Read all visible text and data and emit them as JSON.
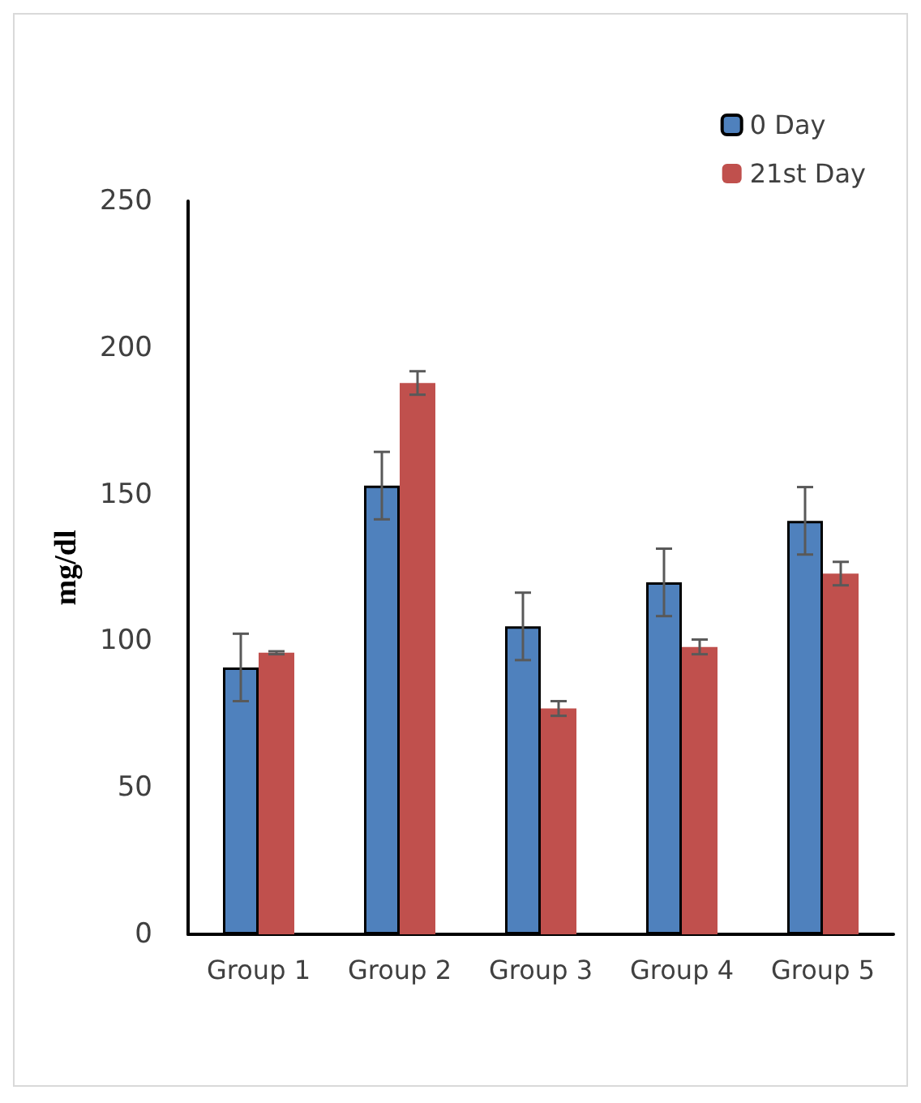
{
  "chart_data": {
    "type": "bar",
    "ylabel": "mg/dl",
    "categories": [
      "Group 1",
      "Group 2",
      "Group 3",
      "Group 4",
      "Group 5"
    ],
    "series": [
      {
        "name": "0 Day",
        "color": "#4f81bd",
        "values": [
          91,
          153,
          105,
          120,
          141
        ],
        "errors": [
          11.5,
          11.5,
          11.5,
          11.5,
          11.5
        ]
      },
      {
        "name": "21st Day",
        "color": "#c0504d",
        "values": [
          96,
          188,
          77,
          98,
          123
        ],
        "errors": [
          0.5,
          4,
          2.5,
          2.5,
          4
        ]
      }
    ],
    "ylim": [
      0,
      250
    ],
    "yticks": [
      0,
      50,
      100,
      150,
      200,
      250
    ],
    "grid": false,
    "legend": "top right"
  }
}
